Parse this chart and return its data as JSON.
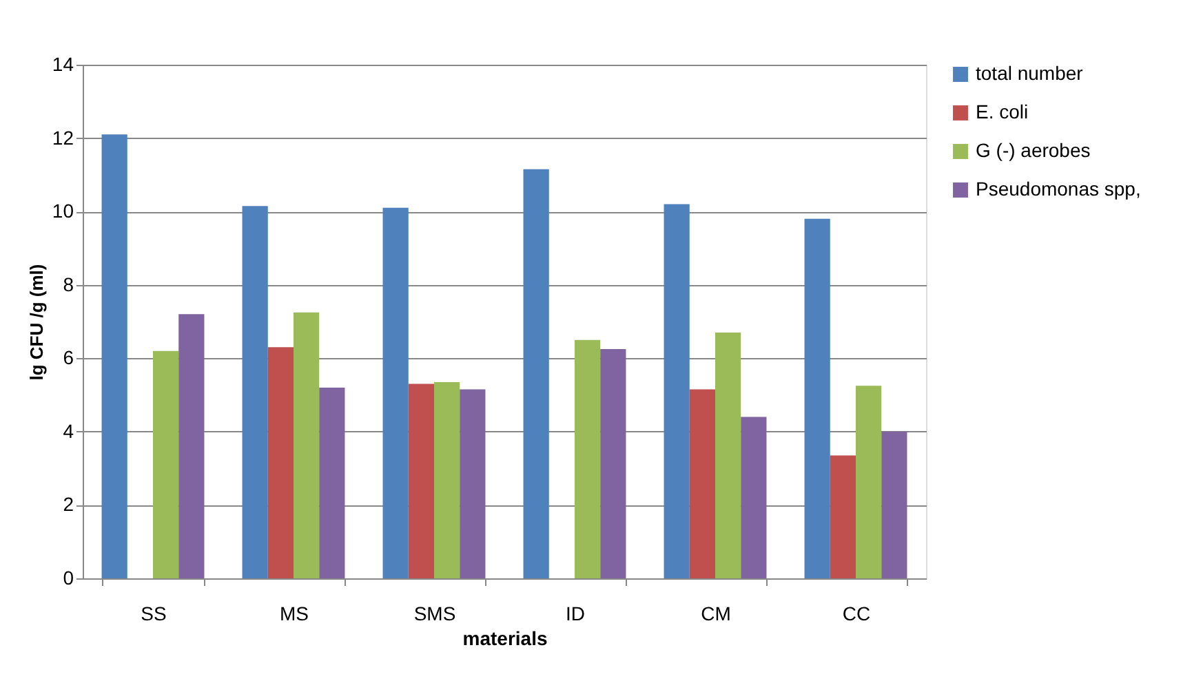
{
  "chart_data": {
    "type": "bar",
    "xlabel": "materials",
    "ylabel": "lg CFU /g (ml)",
    "categories": [
      "SS",
      "MS",
      "SMS",
      "ID",
      "CM",
      "CC"
    ],
    "series": [
      {
        "name": "total number",
        "color": "#4f81bd",
        "values": [
          12.1,
          10.15,
          10.1,
          11.15,
          10.2,
          9.8
        ]
      },
      {
        "name": "E. coli",
        "color": "#c0504d",
        "values": [
          null,
          6.3,
          5.3,
          null,
          5.15,
          3.35
        ]
      },
      {
        "name": "G (-) aerobes",
        "color": "#9bbb59",
        "values": [
          6.2,
          7.25,
          5.35,
          6.5,
          6.7,
          5.25
        ]
      },
      {
        "name": "Pseudomonas spp,",
        "color": "#8064a2",
        "values": [
          7.2,
          5.2,
          5.15,
          6.25,
          4.4,
          4.0
        ]
      }
    ],
    "ylim": [
      0,
      14
    ],
    "yticks": [
      0,
      2,
      4,
      6,
      8,
      10,
      12,
      14
    ],
    "grid": "y",
    "legend": "right"
  }
}
